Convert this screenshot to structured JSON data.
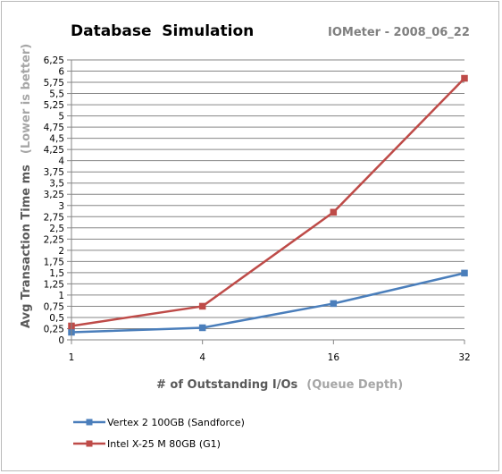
{
  "chart_data": {
    "type": "line",
    "title": "Database  Simulation",
    "subtitle": "IOMeter - 2008_06_22",
    "xlabel": "# of Outstanding I/Os",
    "xlabel_note": "(Queue Depth)",
    "ylabel": "Avg Transaction Time ms",
    "ylabel_note": "(Lower is better)",
    "categories": [
      "1",
      "4",
      "16",
      "32"
    ],
    "ylim": [
      0,
      6.25
    ],
    "ystep": 0.25,
    "ytick_labels": [
      "0",
      "0,25",
      "0,5",
      "0,75",
      "1",
      "1,25",
      "1,5",
      "1,75",
      "2",
      "2,25",
      "2,5",
      "2,75",
      "3",
      "3,25",
      "3,5",
      "3,75",
      "4",
      "4,25",
      "4,5",
      "4,75",
      "5",
      "5,25",
      "5,5",
      "5,75",
      "6",
      "6,25"
    ],
    "grid": true,
    "legend_position": "bottom-left",
    "series": [
      {
        "name": "Vertex 2 100GB (Sandforce)",
        "values": [
          0.17,
          0.27,
          0.81,
          1.49
        ],
        "color": "#4a7ebb",
        "marker": "square"
      },
      {
        "name": "Intel X-25 M 80GB (G1)",
        "values": [
          0.31,
          0.75,
          2.85,
          5.84
        ],
        "color": "#be4b48",
        "marker": "square"
      }
    ]
  }
}
